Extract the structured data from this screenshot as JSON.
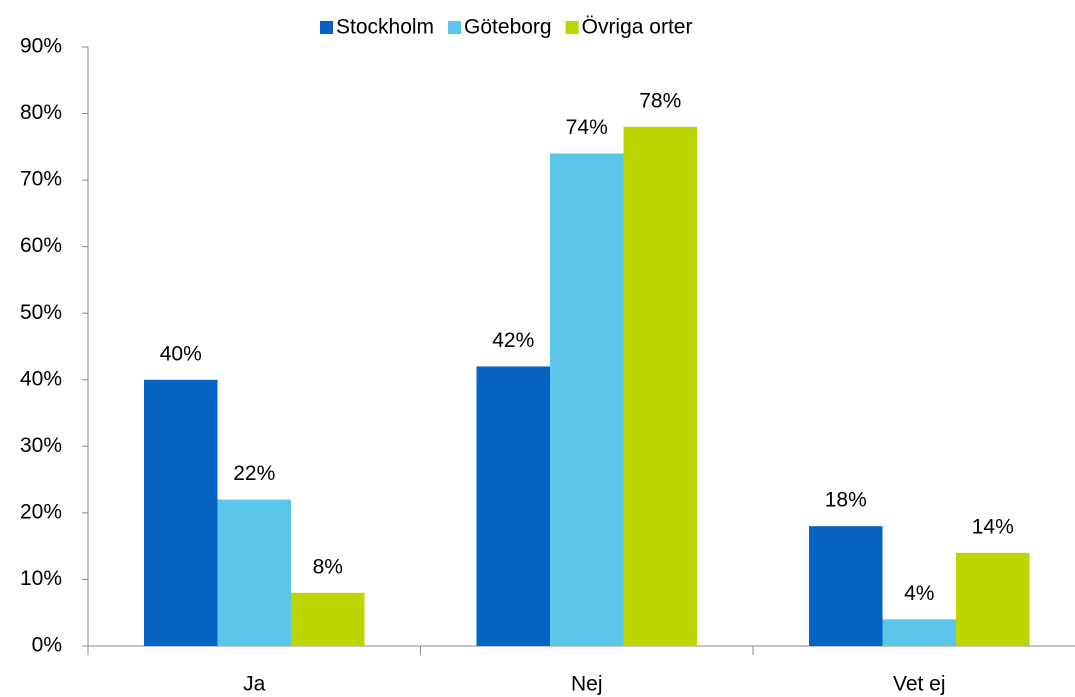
{
  "chart_data": {
    "type": "bar",
    "categories": [
      "Ja",
      "Nej",
      "Vet ej"
    ],
    "series": [
      {
        "name": "Stockholm",
        "color": "#0563c1",
        "values": [
          40,
          42,
          18
        ],
        "value_labels": [
          "40%",
          "42%",
          "18%"
        ]
      },
      {
        "name": "Göteborg",
        "color": "#5bc5ea",
        "values": [
          22,
          74,
          4
        ],
        "value_labels": [
          "22%",
          "74%",
          "4%"
        ]
      },
      {
        "name": "Övriga orter",
        "color": "#bdd600",
        "values": [
          8,
          78,
          14
        ],
        "value_labels": [
          "8%",
          "78%",
          "14%"
        ]
      }
    ],
    "ylim": [
      0,
      90
    ],
    "yticks": [
      {
        "value": 0,
        "label": "0%"
      },
      {
        "value": 10,
        "label": "10%"
      },
      {
        "value": 20,
        "label": "20%"
      },
      {
        "value": 30,
        "label": "30%"
      },
      {
        "value": 40,
        "label": "40%"
      },
      {
        "value": 50,
        "label": "50%"
      },
      {
        "value": 60,
        "label": "60%"
      },
      {
        "value": 70,
        "label": "70%"
      },
      {
        "value": 80,
        "label": "80%"
      },
      {
        "value": 90,
        "label": "90%"
      }
    ],
    "legend": "top"
  }
}
